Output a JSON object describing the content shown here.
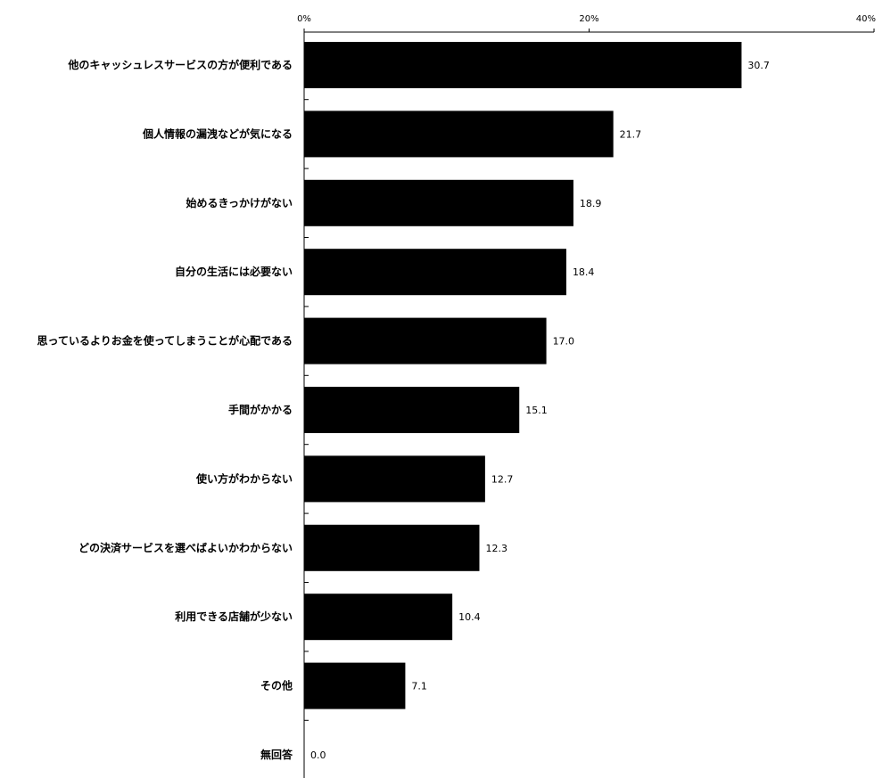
{
  "chart_data": {
    "type": "bar",
    "orientation": "horizontal",
    "xlim": [
      0,
      40
    ],
    "xticks": [
      "0%",
      "20%",
      "40%"
    ],
    "grid": false,
    "categories": [
      "他のキャッシュレスサービスの方が便利である",
      "個人情報の漏洩などが気になる",
      "始めるきっかけがない",
      "自分の生活には必要ない",
      "思っているよりお金を使ってしまうことが心配である",
      "手間がかかる",
      "使い方がわからない",
      "どの決済サービスを選べばよいかわからない",
      "利用できる店舗が少ない",
      "その他",
      "無回答"
    ],
    "values": [
      30.7,
      21.7,
      18.9,
      18.4,
      17.0,
      15.1,
      12.7,
      12.3,
      10.4,
      7.1,
      0.0
    ],
    "value_labels": [
      "30.7",
      "21.7",
      "18.9",
      "18.4",
      "17.0",
      "15.1",
      "12.7",
      "12.3",
      "10.4",
      "7.1",
      "0.0"
    ],
    "bar_color": "#000000"
  }
}
